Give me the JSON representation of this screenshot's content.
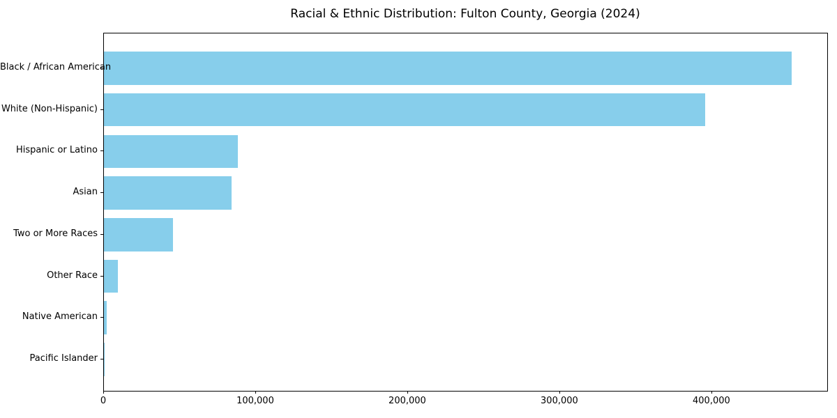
{
  "chart_data": {
    "type": "bar",
    "orientation": "horizontal",
    "title": "Racial & Ethnic Distribution: Fulton County, Georgia (2024)",
    "categories": [
      "Black / African American",
      "White (Non-Hispanic)",
      "Hispanic or Latino",
      "Asian",
      "Two or More Races",
      "Other Race",
      "Native American",
      "Pacific Islander"
    ],
    "values": [
      453000,
      396000,
      88000,
      84000,
      45500,
      9300,
      1900,
      400
    ],
    "xlabel": "",
    "ylabel": "",
    "xlim": [
      0,
      476200
    ],
    "x_ticks": [
      0,
      100000,
      200000,
      300000,
      400000
    ],
    "x_tick_labels": [
      "0",
      "100,000",
      "200,000",
      "300,000",
      "400,000"
    ],
    "bar_color": "#87CEEB",
    "axis_color": "#000000",
    "text_color": "#000000",
    "grid": false,
    "legend": "none",
    "sort_order": "descending"
  }
}
